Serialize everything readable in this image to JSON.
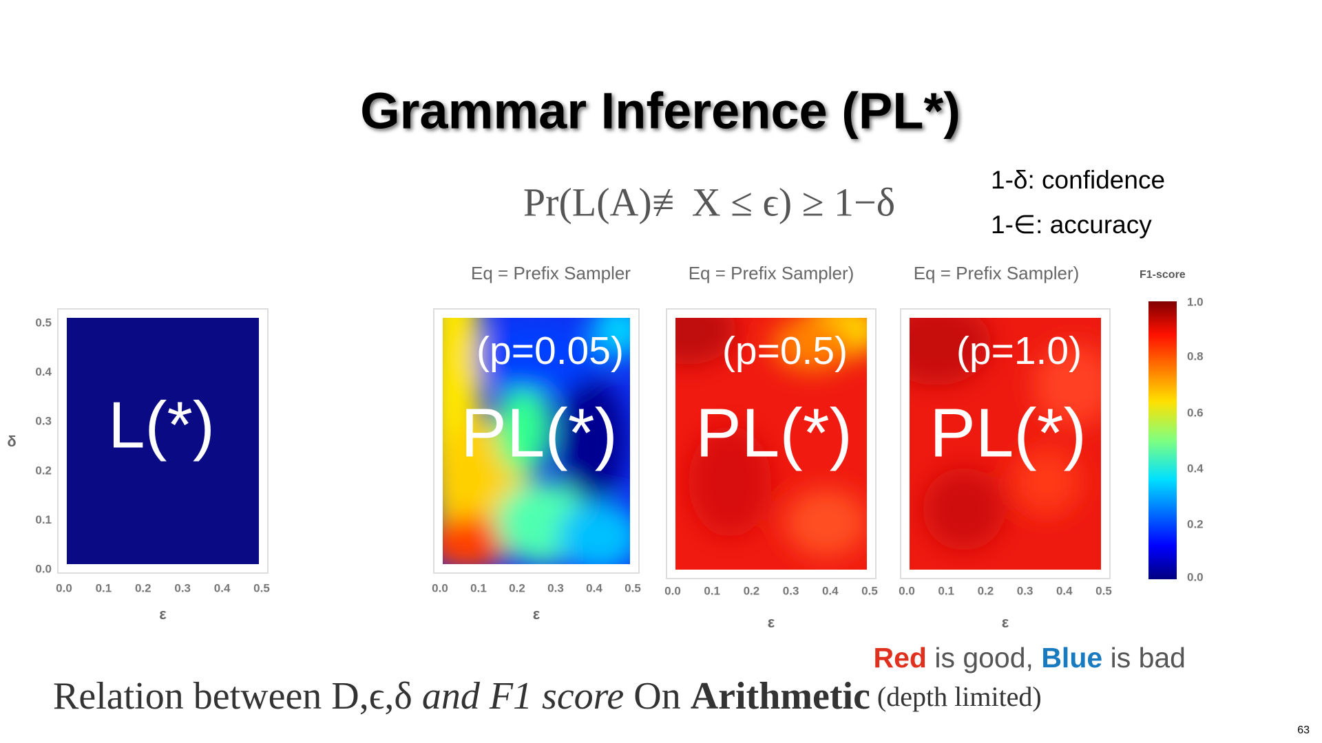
{
  "header": {
    "title": "Grammar Inference (PL*)"
  },
  "formula": "Pr(L(A)≢X ≤ ϵ) ≥ 1−δ",
  "notes": [
    "1-δ: confidence",
    "1-∈: accuracy"
  ],
  "axes": {
    "xticks": [
      "0.0",
      "0.1",
      "0.2",
      "0.3",
      "0.4",
      "0.5"
    ],
    "yticks": [
      "0.0",
      "0.1",
      "0.2",
      "0.3",
      "0.4",
      "0.5"
    ],
    "xlabel": "ε",
    "ylabel": "δ"
  },
  "panels": [
    {
      "label": "L(*)"
    },
    {
      "subtitle": "Eq = Prefix Sampler",
      "annotation": "(p=0.05)",
      "label": "PL(*)"
    },
    {
      "subtitle": "Eq = Prefix Sampler)",
      "annotation": "(p=0.5)",
      "label": "PL(*)"
    },
    {
      "subtitle": "Eq = Prefix Sampler)",
      "annotation": "(p=1.0)",
      "label": "PL(*)"
    }
  ],
  "colorbar": {
    "title": "F1-score",
    "ticks": [
      "1.0",
      "0.8",
      "0.6",
      "0.4",
      "0.2",
      "0.0"
    ]
  },
  "verdict": {
    "red": "Red",
    "mid": " is good, ",
    "blue": "Blue",
    "end": " is bad"
  },
  "caption": {
    "a": "Relation between D,ϵ,δ ",
    "b": "and F1 score",
    "c": " On ",
    "d": "Arithmetic",
    "e": " (depth limited)"
  },
  "page_number": "63"
}
